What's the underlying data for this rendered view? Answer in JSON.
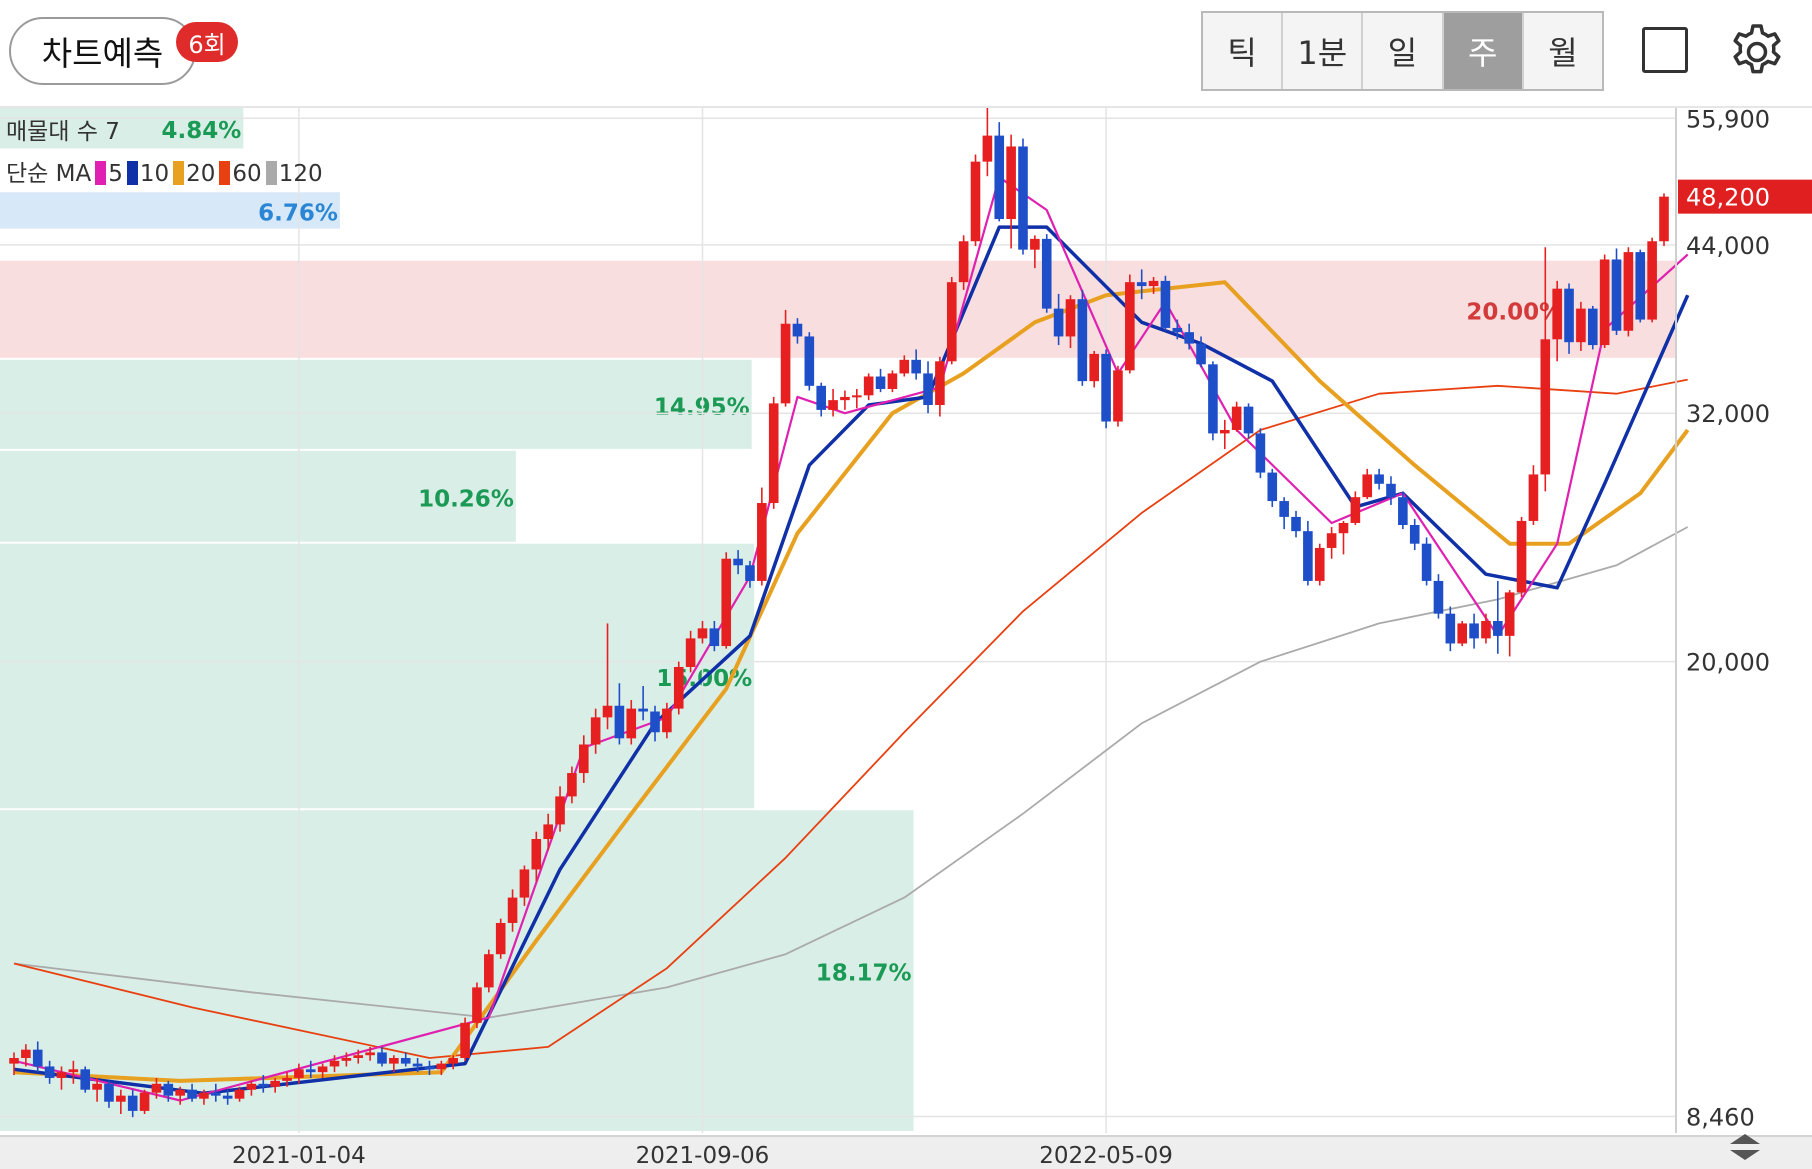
{
  "header": {
    "predict_label": "차트예측",
    "predict_badge": "6회",
    "periods": [
      {
        "label": "틱",
        "active": false
      },
      {
        "label": "1분",
        "active": false
      },
      {
        "label": "일",
        "active": false
      },
      {
        "label": "주",
        "active": true
      },
      {
        "label": "월",
        "active": false
      }
    ],
    "gear_icon": "gear-icon",
    "checkbox_icon": "checkbox-icon"
  },
  "legend": {
    "volume_profile_label": "매물대 수 7",
    "ma_type": "단순 MA",
    "ma_items": [
      {
        "period": "5",
        "color": "#e020b0"
      },
      {
        "period": "10",
        "color": "#1030a8"
      },
      {
        "period": "20",
        "color": "#e8a020"
      },
      {
        "period": "60",
        "color": "#e84010"
      },
      {
        "period": "120",
        "color": "#aaaaaa"
      }
    ]
  },
  "chart_data": {
    "type": "candlestick",
    "interval": "weekly",
    "y_axis": {
      "scale": "log",
      "ticks": [
        55900,
        44000,
        32000,
        20000,
        8460
      ],
      "tick_labels": [
        "55,900",
        "44,000",
        "32,000",
        "20,000",
        "8,460"
      ],
      "range": [
        8200,
        57000
      ]
    },
    "x_axis": {
      "ticks": [
        "2021-01-04",
        "2021-09-06",
        "2022-05-09"
      ]
    },
    "current_price": {
      "value": 48200,
      "label": "48,200",
      "color": "#e02020"
    },
    "colors": {
      "up": "#e62020",
      "down": "#1f4fc8"
    },
    "volume_profile": [
      {
        "low": 52600,
        "high": 57000,
        "pct": 4.84,
        "label": "4.84%",
        "highlight": "normal"
      },
      {
        "low": 45200,
        "high": 48600,
        "pct": 6.76,
        "label": "6.76%",
        "highlight": "current"
      },
      {
        "low": 35400,
        "high": 42700,
        "pct": 20.0,
        "label": "20.00%",
        "highlight": "max"
      },
      {
        "low": 29800,
        "high": 35400,
        "pct": 14.95,
        "label": "14.95%",
        "highlight": "normal"
      },
      {
        "low": 25000,
        "high": 29800,
        "pct": 10.26,
        "label": "10.26%",
        "highlight": "normal"
      },
      {
        "low": 15100,
        "high": 25000,
        "pct": 15.0,
        "label": "15.00%",
        "highlight": "normal"
      },
      {
        "low": 8200,
        "high": 15100,
        "pct": 18.17,
        "label": "18.17%",
        "highlight": "normal"
      }
    ],
    "candles": [
      [
        9350,
        9550,
        9150,
        9450
      ],
      [
        9450,
        9700,
        9300,
        9600
      ],
      [
        9600,
        9750,
        9200,
        9300
      ],
      [
        9300,
        9400,
        9000,
        9100
      ],
      [
        9100,
        9300,
        8900,
        9200
      ],
      [
        9200,
        9400,
        9000,
        9250
      ],
      [
        9250,
        9300,
        8850,
        8900
      ],
      [
        8900,
        9100,
        8700,
        9000
      ],
      [
        9000,
        9050,
        8600,
        8700
      ],
      [
        8700,
        8900,
        8500,
        8800
      ],
      [
        8800,
        8900,
        8450,
        8550
      ],
      [
        8550,
        8900,
        8500,
        8850
      ],
      [
        8850,
        9100,
        8750,
        9000
      ],
      [
        9000,
        9050,
        8700,
        8800
      ],
      [
        8800,
        8950,
        8650,
        8900
      ],
      [
        8900,
        9000,
        8700,
        8750
      ],
      [
        8750,
        8900,
        8650,
        8850
      ],
      [
        8850,
        9000,
        8700,
        8800
      ],
      [
        8800,
        8900,
        8650,
        8750
      ],
      [
        8750,
        8950,
        8700,
        8900
      ],
      [
        8900,
        9050,
        8800,
        9000
      ],
      [
        9000,
        9150,
        8850,
        8950
      ],
      [
        8950,
        9100,
        8850,
        9050
      ],
      [
        9050,
        9200,
        8950,
        9100
      ],
      [
        9100,
        9350,
        9000,
        9250
      ],
      [
        9250,
        9400,
        9100,
        9200
      ],
      [
        9200,
        9350,
        9100,
        9300
      ],
      [
        9300,
        9500,
        9200,
        9400
      ],
      [
        9400,
        9550,
        9300,
        9450
      ],
      [
        9450,
        9600,
        9350,
        9500
      ],
      [
        9500,
        9650,
        9400,
        9550
      ],
      [
        9550,
        9650,
        9300,
        9350
      ],
      [
        9350,
        9500,
        9200,
        9450
      ],
      [
        9450,
        9550,
        9300,
        9350
      ],
      [
        9350,
        9450,
        9200,
        9300
      ],
      [
        9300,
        9400,
        9150,
        9250
      ],
      [
        9250,
        9400,
        9150,
        9350
      ],
      [
        9350,
        9500,
        9250,
        9450
      ],
      [
        9450,
        10200,
        9400,
        10100
      ],
      [
        10100,
        10900,
        10000,
        10800
      ],
      [
        10800,
        11600,
        10700,
        11500
      ],
      [
        11500,
        12300,
        11400,
        12200
      ],
      [
        12200,
        13000,
        12000,
        12800
      ],
      [
        12800,
        13600,
        12600,
        13500
      ],
      [
        13500,
        14500,
        13200,
        14300
      ],
      [
        14300,
        15000,
        14000,
        14700
      ],
      [
        14700,
        15800,
        14500,
        15500
      ],
      [
        15500,
        16400,
        15300,
        16200
      ],
      [
        16200,
        17400,
        15900,
        17100
      ],
      [
        17100,
        18300,
        16800,
        18000
      ],
      [
        18000,
        21500,
        17600,
        18400
      ],
      [
        18400,
        19200,
        17100,
        17300
      ],
      [
        17300,
        18600,
        17100,
        18300
      ],
      [
        18300,
        19100,
        17900,
        18200
      ],
      [
        18200,
        18400,
        17200,
        17500
      ],
      [
        17500,
        18500,
        17300,
        18300
      ],
      [
        18300,
        20000,
        18100,
        19800
      ],
      [
        19800,
        21200,
        19600,
        20900
      ],
      [
        20900,
        21600,
        20700,
        21300
      ],
      [
        21300,
        21600,
        20400,
        20600
      ],
      [
        20600,
        24600,
        20500,
        24300
      ],
      [
        24300,
        24700,
        23600,
        24000
      ],
      [
        24000,
        24200,
        23000,
        23300
      ],
      [
        23300,
        27800,
        23100,
        27000
      ],
      [
        27000,
        33000,
        26700,
        32600
      ],
      [
        32600,
        38900,
        32400,
        37900
      ],
      [
        37900,
        38300,
        36500,
        37000
      ],
      [
        37000,
        37300,
        33400,
        33700
      ],
      [
        33700,
        33900,
        31800,
        32200
      ],
      [
        32200,
        33500,
        31800,
        32800
      ],
      [
        32800,
        33400,
        32200,
        33000
      ],
      [
        33000,
        33500,
        32300,
        33100
      ],
      [
        33100,
        34500,
        32800,
        34300
      ],
      [
        34300,
        34800,
        33300,
        33500
      ],
      [
        33500,
        34700,
        33300,
        34500
      ],
      [
        34500,
        35700,
        34300,
        35400
      ],
      [
        35400,
        36100,
        34100,
        34500
      ],
      [
        34500,
        35300,
        32000,
        32500
      ],
      [
        32500,
        35600,
        31800,
        35300
      ],
      [
        35300,
        41400,
        35100,
        41000
      ],
      [
        41000,
        44800,
        40400,
        44300
      ],
      [
        44300,
        52200,
        43900,
        51500
      ],
      [
        51500,
        57000,
        50100,
        54100
      ],
      [
        54100,
        55500,
        46000,
        46200
      ],
      [
        46200,
        54200,
        43700,
        53000
      ],
      [
        53000,
        53800,
        43200,
        43600
      ],
      [
        43600,
        44800,
        42100,
        44500
      ],
      [
        44500,
        44900,
        38700,
        39000
      ],
      [
        39000,
        40100,
        36400,
        37000
      ],
      [
        37000,
        40000,
        36200,
        39700
      ],
      [
        39700,
        40400,
        33700,
        34000
      ],
      [
        34000,
        36000,
        33600,
        35800
      ],
      [
        35800,
        36100,
        31100,
        31500
      ],
      [
        31500,
        35000,
        31200,
        34700
      ],
      [
        34700,
        41600,
        34500,
        41000
      ],
      [
        41000,
        42000,
        39700,
        40700
      ],
      [
        40700,
        41400,
        40100,
        41100
      ],
      [
        41100,
        41500,
        37400,
        37600
      ],
      [
        37600,
        38200,
        36800,
        37300
      ],
      [
        37300,
        37900,
        36100,
        36500
      ],
      [
        36500,
        37000,
        34900,
        35100
      ],
      [
        35100,
        35300,
        30400,
        30800
      ],
      [
        30800,
        31600,
        29900,
        31000
      ],
      [
        31000,
        32700,
        30900,
        32400
      ],
      [
        32400,
        32600,
        30500,
        30800
      ],
      [
        30800,
        31100,
        28300,
        28600
      ],
      [
        28600,
        28800,
        26800,
        27100
      ],
      [
        27100,
        27300,
        25700,
        26300
      ],
      [
        26300,
        26600,
        25300,
        25600
      ],
      [
        25600,
        26100,
        23100,
        23300
      ],
      [
        23300,
        25000,
        23100,
        24800
      ],
      [
        24800,
        25800,
        24300,
        25500
      ],
      [
        25500,
        26100,
        24500,
        26000
      ],
      [
        26000,
        27600,
        25900,
        27300
      ],
      [
        27300,
        28800,
        27200,
        28500
      ],
      [
        28500,
        28800,
        27700,
        28000
      ],
      [
        28000,
        28400,
        26900,
        27300
      ],
      [
        27300,
        27600,
        25700,
        25900
      ],
      [
        25900,
        26200,
        24700,
        25000
      ],
      [
        25000,
        25300,
        23100,
        23300
      ],
      [
        23300,
        23600,
        21700,
        21900
      ],
      [
        21900,
        22200,
        20400,
        20700
      ],
      [
        20700,
        21600,
        20600,
        21500
      ],
      [
        21500,
        21900,
        20500,
        20900
      ],
      [
        20900,
        21900,
        20700,
        21600
      ],
      [
        21600,
        23300,
        20300,
        21000
      ],
      [
        21000,
        22900,
        20200,
        22800
      ],
      [
        22800,
        26300,
        22600,
        26100
      ],
      [
        26100,
        29000,
        25900,
        28500
      ],
      [
        28500,
        43800,
        27600,
        36800
      ],
      [
        36800,
        41100,
        35300,
        40500
      ],
      [
        40500,
        40900,
        35800,
        36600
      ],
      [
        36600,
        39500,
        36000,
        39000
      ],
      [
        39000,
        39200,
        36100,
        36400
      ],
      [
        36400,
        43200,
        36200,
        42800
      ],
      [
        42800,
        43700,
        37100,
        37400
      ],
      [
        37400,
        43800,
        37000,
        43400
      ],
      [
        43400,
        43600,
        38000,
        38200
      ],
      [
        38200,
        44600,
        38000,
        44300
      ],
      [
        44300,
        48500,
        43900,
        48200
      ]
    ],
    "ma": {
      "ma5": [
        [
          0,
          9400
        ],
        [
          14,
          8720
        ],
        [
          40,
          10200
        ],
        [
          48,
          17000
        ],
        [
          55,
          18000
        ],
        [
          62,
          23500
        ],
        [
          66,
          33000
        ],
        [
          70,
          32000
        ],
        [
          78,
          33600
        ],
        [
          83,
          50000
        ],
        [
          87,
          47000
        ],
        [
          93,
          34500
        ],
        [
          97,
          39500
        ],
        [
          103,
          31000
        ],
        [
          111,
          26000
        ],
        [
          117,
          27500
        ],
        [
          125,
          21000
        ],
        [
          130,
          25000
        ],
        [
          134,
          37500
        ],
        [
          141,
          43200
        ]
      ],
      "ma10": [
        [
          0,
          9250
        ],
        [
          16,
          8840
        ],
        [
          38,
          9350
        ],
        [
          46,
          13500
        ],
        [
          54,
          17800
        ],
        [
          62,
          21000
        ],
        [
          67,
          29000
        ],
        [
          72,
          32500
        ],
        [
          77,
          33000
        ],
        [
          83,
          45500
        ],
        [
          87,
          45500
        ],
        [
          95,
          38000
        ],
        [
          100,
          36500
        ],
        [
          106,
          34000
        ],
        [
          113,
          26800
        ],
        [
          117,
          27500
        ],
        [
          124,
          23600
        ],
        [
          130,
          23000
        ],
        [
          134,
          28000
        ],
        [
          141,
          40000
        ]
      ],
      "ma20": [
        [
          0,
          9200
        ],
        [
          14,
          9050
        ],
        [
          36,
          9200
        ],
        [
          44,
          11800
        ],
        [
          52,
          15000
        ],
        [
          60,
          19000
        ],
        [
          66,
          25500
        ],
        [
          74,
          32000
        ],
        [
          80,
          34500
        ],
        [
          86,
          38000
        ],
        [
          92,
          40000
        ],
        [
          102,
          41000
        ],
        [
          110,
          34000
        ],
        [
          118,
          29000
        ],
        [
          126,
          25000
        ],
        [
          131,
          25000
        ],
        [
          137,
          27500
        ],
        [
          141,
          31000
        ]
      ],
      "ma60": [
        [
          0,
          11300
        ],
        [
          15,
          10400
        ],
        [
          35,
          9450
        ],
        [
          45,
          9650
        ],
        [
          55,
          11200
        ],
        [
          65,
          13800
        ],
        [
          75,
          17500
        ],
        [
          85,
          22000
        ],
        [
          95,
          26500
        ],
        [
          105,
          31000
        ],
        [
          115,
          33200
        ],
        [
          125,
          33700
        ],
        [
          135,
          33200
        ],
        [
          141,
          34100
        ]
      ],
      "ma120": [
        [
          0,
          11300
        ],
        [
          20,
          10700
        ],
        [
          40,
          10200
        ],
        [
          55,
          10800
        ],
        [
          65,
          11500
        ],
        [
          75,
          12800
        ],
        [
          85,
          15000
        ],
        [
          95,
          17800
        ],
        [
          105,
          20000
        ],
        [
          115,
          21500
        ],
        [
          125,
          22500
        ],
        [
          135,
          24000
        ],
        [
          141,
          25800
        ]
      ]
    }
  }
}
